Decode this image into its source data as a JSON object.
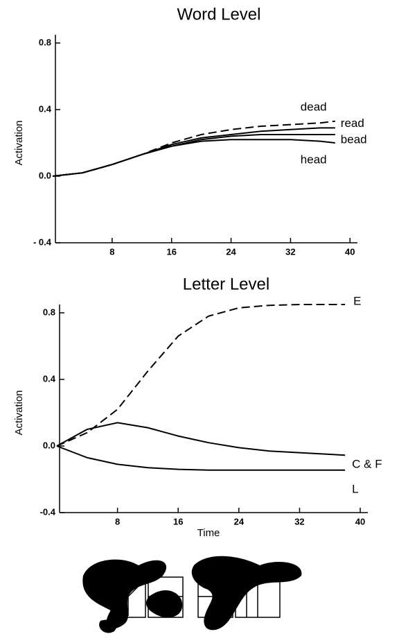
{
  "chart_data": [
    {
      "type": "line",
      "title": "Word Level",
      "y_label": "Activation",
      "x": [
        0,
        4,
        8,
        12,
        16,
        20,
        24,
        28,
        32,
        36,
        38
      ],
      "series": [
        {
          "name": "dead",
          "color": "#000000",
          "dashed": true,
          "values": [
            0,
            0.02,
            0.07,
            0.13,
            0.2,
            0.25,
            0.28,
            0.3,
            0.31,
            0.32,
            0.33
          ]
        },
        {
          "name": "read",
          "color": "#000000",
          "dashed": false,
          "values": [
            0,
            0.02,
            0.07,
            0.13,
            0.19,
            0.23,
            0.25,
            0.27,
            0.28,
            0.29,
            0.29
          ]
        },
        {
          "name": "bead",
          "color": "#000000",
          "dashed": false,
          "values": [
            0,
            0.02,
            0.07,
            0.13,
            0.18,
            0.22,
            0.24,
            0.25,
            0.25,
            0.25,
            0.25
          ]
        },
        {
          "name": "head",
          "color": "#000000",
          "dashed": false,
          "values": [
            0,
            0.02,
            0.07,
            0.13,
            0.18,
            0.21,
            0.22,
            0.22,
            0.22,
            0.21,
            0.2
          ]
        }
      ],
      "xlim": [
        0,
        41
      ],
      "xticks": [
        8,
        16,
        24,
        32,
        40
      ],
      "ylim": [
        -0.4,
        0.85
      ],
      "yticks": [
        {
          "value": -0.4,
          "label": "- 0.4"
        },
        {
          "value": 0,
          "label": "0.0"
        },
        0.4,
        0.8
      ]
    },
    {
      "type": "line",
      "title": "Letter Level",
      "y_label": "Activation",
      "x_label": "Time",
      "x": [
        0,
        4,
        8,
        12,
        16,
        20,
        24,
        28,
        32,
        36,
        38
      ],
      "series": [
        {
          "name": "E",
          "color": "#000000",
          "dashed": true,
          "values": [
            0,
            0.08,
            0.22,
            0.45,
            0.66,
            0.78,
            0.83,
            0.845,
            0.85,
            0.85,
            0.85
          ]
        },
        {
          "name": "C & F",
          "color": "#000000",
          "dashed": false,
          "values": [
            0,
            0.1,
            0.14,
            0.11,
            0.06,
            0.02,
            -0.01,
            -0.03,
            -0.04,
            -0.05,
            -0.055
          ]
        },
        {
          "name": "L",
          "color": "#000000",
          "dashed": false,
          "values": [
            0,
            -0.07,
            -0.11,
            -0.13,
            -0.14,
            -0.145,
            -0.145,
            -0.145,
            -0.145,
            -0.145,
            -0.145
          ]
        }
      ],
      "xlim": [
        0,
        41
      ],
      "xticks": [
        8,
        16,
        24,
        32,
        40
      ],
      "ylim": [
        -0.4,
        0.85
      ],
      "yticks": [
        {
          "value": -0.4,
          "label": "-0.4"
        },
        {
          "value": 0,
          "label": "0.0"
        },
        0.4,
        0.8
      ]
    }
  ]
}
